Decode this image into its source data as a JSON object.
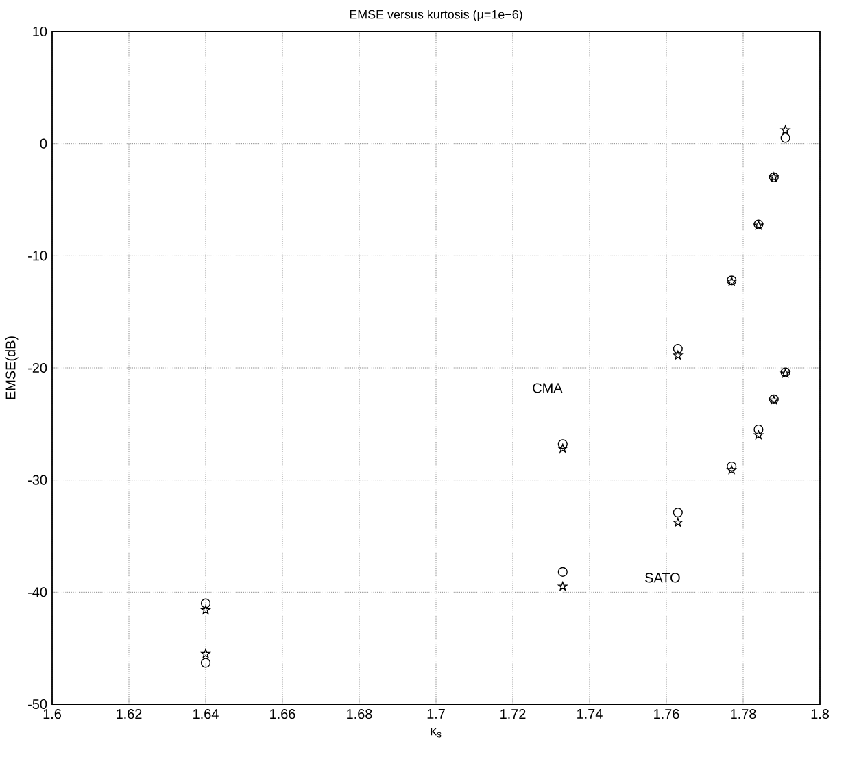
{
  "chart_data": {
    "type": "scatter",
    "title": "EMSE versus kurtosis (μ=1e−6)",
    "xlabel": "κ$_{s}$",
    "ylabel": "EMSE(dB)",
    "xlim": [
      1.6,
      1.8
    ],
    "xticks": [
      1.6,
      1.62,
      1.64,
      1.66,
      1.68,
      1.7,
      1.72,
      1.74,
      1.76,
      1.78,
      1.8
    ],
    "ylim": [
      -50,
      10
    ],
    "yticks": [
      -50,
      -40,
      -30,
      -20,
      -10,
      0,
      10
    ],
    "grid": true,
    "annotations": [
      "CMA",
      "SATO"
    ],
    "series": [
      {
        "color": "#000000",
        "marker": "circle",
        "x": [
          1.64,
          1.733,
          1.763,
          1.777,
          1.784,
          1.788,
          1.791,
          1.64,
          1.733,
          1.763,
          1.777,
          1.784,
          1.788,
          1.791
        ],
        "values": [
          -41.0,
          -26.8,
          -18.3,
          -12.2,
          -7.2,
          -3.0,
          0.5,
          -46.3,
          -38.2,
          -32.9,
          -28.8,
          -25.5,
          -22.8,
          -20.4
        ]
      },
      {
        "color": "#000000",
        "marker": "star",
        "x": [
          1.64,
          1.733,
          1.763,
          1.777,
          1.784,
          1.788,
          1.791,
          1.64,
          1.733,
          1.763,
          1.777,
          1.784,
          1.788,
          1.791
        ],
        "values": [
          -41.6,
          -27.2,
          -18.9,
          -12.3,
          -7.3,
          -3.0,
          1.2,
          -45.5,
          -39.5,
          -33.8,
          -29.1,
          -26.0,
          -22.9,
          -20.5
        ]
      }
    ]
  }
}
